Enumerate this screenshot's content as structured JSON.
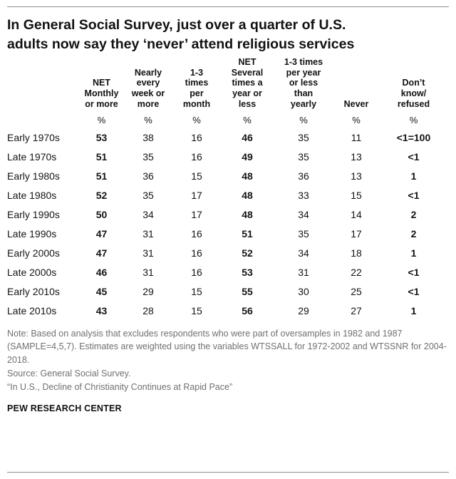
{
  "title": "In General Social Survey, just over a quarter of U.S.\nadults now say they ‘never’ attend religious services",
  "chart_data": {
    "type": "table",
    "unit_row": "%",
    "columns": [
      {
        "label": "NET\nMonthly\nor more",
        "bold": true
      },
      {
        "label": "Nearly\nevery\nweek or\nmore",
        "bold": false
      },
      {
        "label": "1-3\ntimes\nper\nmonth",
        "bold": false
      },
      {
        "label": "NET\nSeveral\ntimes a\nyear or\nless",
        "bold": true
      },
      {
        "label": "1-3 times\nper year\nor less\nthan\nyearly",
        "bold": false
      },
      {
        "label": "Never",
        "bold": false
      },
      {
        "label": "Don’t\nknow/\nrefused",
        "bold": true
      }
    ],
    "rows": [
      {
        "period": "Early 1970s",
        "values": [
          "53",
          "38",
          "16",
          "46",
          "35",
          "11",
          "<1=100"
        ]
      },
      {
        "period": "Late 1970s",
        "values": [
          "51",
          "35",
          "16",
          "49",
          "35",
          "13",
          "<1"
        ]
      },
      {
        "period": "Early 1980s",
        "values": [
          "51",
          "36",
          "15",
          "48",
          "36",
          "13",
          "1"
        ]
      },
      {
        "period": "Late 1980s",
        "values": [
          "52",
          "35",
          "17",
          "48",
          "33",
          "15",
          "<1"
        ]
      },
      {
        "period": "Early 1990s",
        "values": [
          "50",
          "34",
          "17",
          "48",
          "34",
          "14",
          "2"
        ]
      },
      {
        "period": "Late 1990s",
        "values": [
          "47",
          "31",
          "16",
          "51",
          "35",
          "17",
          "2"
        ]
      },
      {
        "period": "Early 2000s",
        "values": [
          "47",
          "31",
          "16",
          "52",
          "34",
          "18",
          "1"
        ]
      },
      {
        "period": "Late 2000s",
        "values": [
          "46",
          "31",
          "16",
          "53",
          "31",
          "22",
          "<1"
        ]
      },
      {
        "period": "Early 2010s",
        "values": [
          "45",
          "29",
          "15",
          "55",
          "30",
          "25",
          "<1"
        ]
      },
      {
        "period": "Late 2010s",
        "values": [
          "43",
          "28",
          "15",
          "56",
          "29",
          "27",
          "1"
        ]
      }
    ]
  },
  "notes": {
    "note": "Note: Based on analysis that excludes respondents who were part of oversamples in 1982 and 1987 (SAMPLE=4,5,7). Estimates are weighted using the variables WTSSALL for 1972-2002 and WTSSNR for 2004-2018.",
    "source": "Source: General Social Survey.",
    "quote": "“In U.S., Decline of Christianity Continues at Rapid Pace”",
    "brand": "PEW RESEARCH CENTER"
  }
}
